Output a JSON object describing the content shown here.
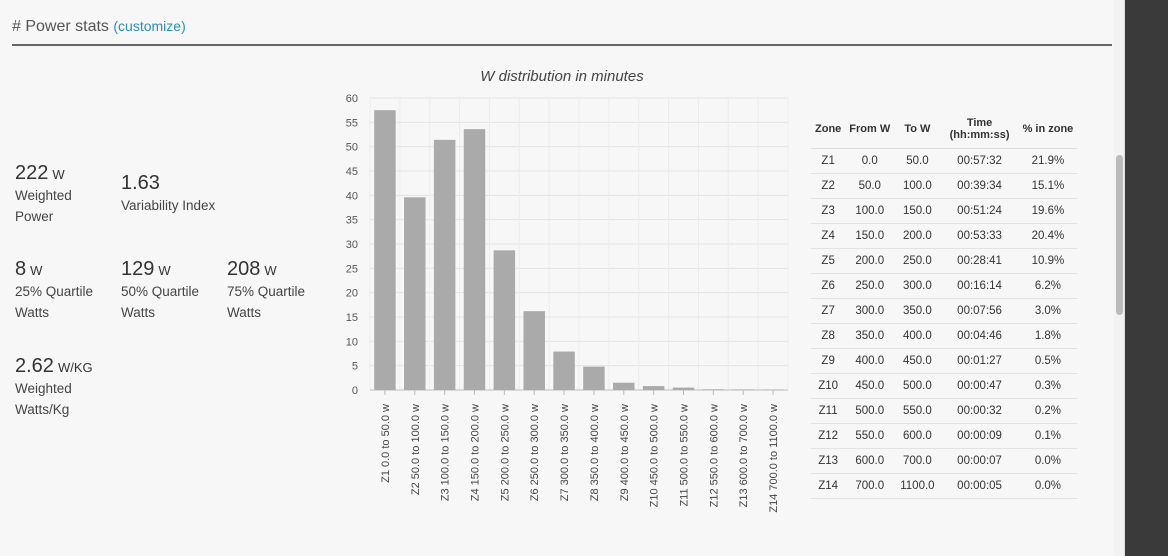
{
  "header": {
    "title": "# Power stats",
    "link": "(customize)"
  },
  "stats": [
    {
      "value": "222",
      "unit": "W",
      "label1": "Weighted",
      "label2": "Power"
    },
    {
      "value": "1.63",
      "unit": "",
      "label1": "Variability Index",
      "label2": ""
    },
    {
      "value": "8",
      "unit": "W",
      "label1": "25% Quartile",
      "label2": "Watts"
    },
    {
      "value": "129",
      "unit": "W",
      "label1": "50% Quartile",
      "label2": "Watts"
    },
    {
      "value": "208",
      "unit": "W",
      "label1": "75% Quartile",
      "label2": "Watts"
    },
    {
      "value": "2.62",
      "unit": "W/KG",
      "label1": "Weighted",
      "label2": "Watts/Kg"
    }
  ],
  "chart_data": {
    "type": "bar",
    "title": "W distribution in minutes",
    "categories": [
      "Z1 0.0 to 50.0 w",
      "Z2 50.0 to 100.0 w",
      "Z3 100.0 to 150.0 w",
      "Z4 150.0 to 200.0 w",
      "Z5 200.0 to 250.0 w",
      "Z6 250.0 to 300.0 w",
      "Z7 300.0 to 350.0 w",
      "Z8 350.0 to 400.0 w",
      "Z9 400.0 to 450.0 w",
      "Z10 450.0 to 500.0 w",
      "Z11 500.0 to 550.0 w",
      "Z12 550.0 to 600.0 w",
      "Z13 600.0 to 700.0 w",
      "Z14 700.0 to 1100.0 w"
    ],
    "values": [
      57.5,
      39.6,
      51.4,
      53.6,
      28.7,
      16.2,
      7.9,
      4.8,
      1.5,
      0.8,
      0.5,
      0.15,
      0.12,
      0.08
    ],
    "ylim": [
      0,
      60
    ],
    "yticks": [
      0,
      5,
      10,
      15,
      20,
      25,
      30,
      35,
      40,
      45,
      50,
      55,
      60
    ],
    "grid": true,
    "color": "#aaaaaa"
  },
  "table": {
    "headers": [
      "Zone",
      "From W",
      "To W",
      "Time (hh:mm:ss)",
      "% in zone"
    ],
    "rows": [
      [
        "Z1",
        "0.0",
        "50.0",
        "00:57:32",
        "21.9%"
      ],
      [
        "Z2",
        "50.0",
        "100.0",
        "00:39:34",
        "15.1%"
      ],
      [
        "Z3",
        "100.0",
        "150.0",
        "00:51:24",
        "19.6%"
      ],
      [
        "Z4",
        "150.0",
        "200.0",
        "00:53:33",
        "20.4%"
      ],
      [
        "Z5",
        "200.0",
        "250.0",
        "00:28:41",
        "10.9%"
      ],
      [
        "Z6",
        "250.0",
        "300.0",
        "00:16:14",
        "6.2%"
      ],
      [
        "Z7",
        "300.0",
        "350.0",
        "00:07:56",
        "3.0%"
      ],
      [
        "Z8",
        "350.0",
        "400.0",
        "00:04:46",
        "1.8%"
      ],
      [
        "Z9",
        "400.0",
        "450.0",
        "00:01:27",
        "0.5%"
      ],
      [
        "Z10",
        "450.0",
        "500.0",
        "00:00:47",
        "0.3%"
      ],
      [
        "Z11",
        "500.0",
        "550.0",
        "00:00:32",
        "0.2%"
      ],
      [
        "Z12",
        "550.0",
        "600.0",
        "00:00:09",
        "0.1%"
      ],
      [
        "Z13",
        "600.0",
        "700.0",
        "00:00:07",
        "0.0%"
      ],
      [
        "Z14",
        "700.0",
        "1100.0",
        "00:00:05",
        "0.0%"
      ]
    ]
  }
}
